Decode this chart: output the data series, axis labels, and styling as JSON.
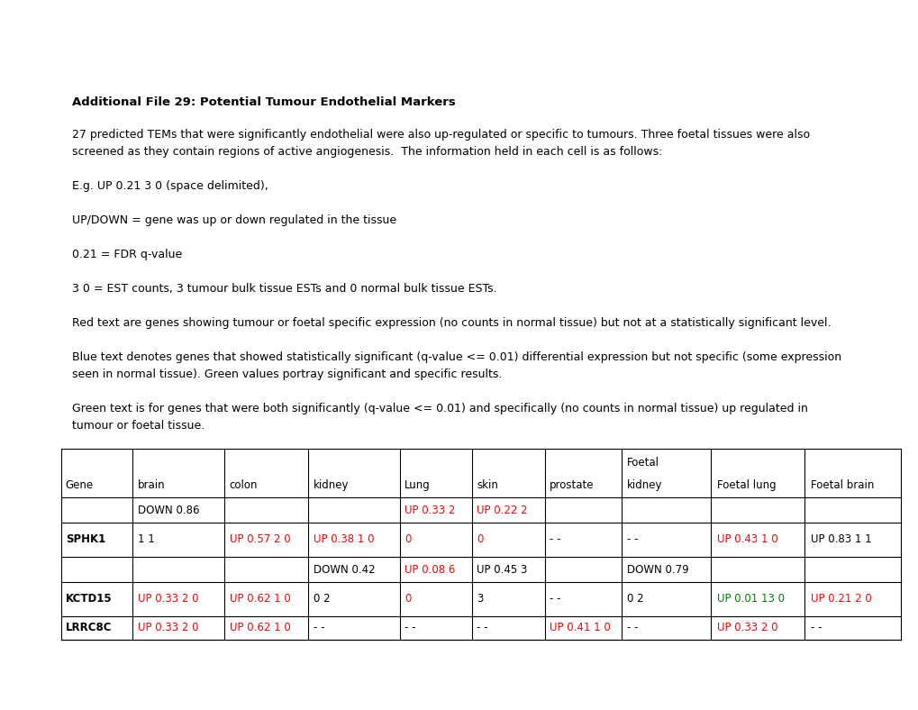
{
  "title": "Additional File 29: Potential Tumour Endothelial Markers",
  "body_paragraphs": [
    [
      "27 predicted TEMs that were significantly endothelial were also up-regulated or specific to tumours. Three foetal tissues were also",
      "screened as they contain regions of active angiogenesis.  The information held in each cell is as follows:"
    ],
    [
      "E.g. UP 0.21 3 0 (space delimited),"
    ],
    [
      "UP/DOWN = gene was up or down regulated in the tissue"
    ],
    [
      "0.21 = FDR q-value"
    ],
    [
      "3 0 = EST counts, 3 tumour bulk tissue ESTs and 0 normal bulk tissue ESTs."
    ],
    [
      "Red text are genes showing tumour or foetal specific expression (no counts in normal tissue) but not at a statistically significant level."
    ],
    [
      "Blue text denotes genes that showed statistically significant (q-value <= 0.01) differential expression but not specific (some expression",
      "seen in normal tissue). Green values portray significant and specific results."
    ],
    [
      "Green text is for genes that were both significantly (q-value <= 0.01) and specifically (no counts in normal tissue) up regulated in",
      "tumour or foetal tissue."
    ]
  ],
  "bg_color": "#ffffff",
  "title_fontsize": 9.5,
  "body_fontsize": 9.0,
  "table_fontsize": 8.5,
  "col_labels_row1": [
    "",
    "",
    "",
    "",
    "",
    "",
    "",
    "Foetal",
    "",
    ""
  ],
  "col_labels_row2": [
    "Gene",
    "brain",
    "colon",
    "kidney",
    "Lung",
    "skin",
    "prostate",
    "kidney",
    "Foetal lung",
    "Foetal brain"
  ],
  "table_rows": [
    {
      "type": "sub",
      "gene": "",
      "cells": [
        {
          "text": "DOWN 0.86",
          "color": "black"
        },
        {
          "text": "",
          "color": "black"
        },
        {
          "text": "",
          "color": "black"
        },
        {
          "text": "UP 0.33 2",
          "color": "red"
        },
        {
          "text": "UP 0.22 2",
          "color": "red"
        },
        {
          "text": "",
          "color": "black"
        },
        {
          "text": "",
          "color": "black"
        },
        {
          "text": "",
          "color": "black"
        },
        {
          "text": "",
          "color": "black"
        }
      ]
    },
    {
      "type": "main",
      "gene": "SPHK1",
      "gene_bold": true,
      "cells": [
        {
          "text": "1 1",
          "color": "black"
        },
        {
          "text": "UP 0.57 2 0",
          "color": "red"
        },
        {
          "text": "UP 0.38 1 0",
          "color": "red"
        },
        {
          "text": "0",
          "color": "red"
        },
        {
          "text": "0",
          "color": "red"
        },
        {
          "text": "- -",
          "color": "black"
        },
        {
          "text": "- -",
          "color": "black"
        },
        {
          "text": "UP 0.43 1 0",
          "color": "red"
        },
        {
          "text": "UP 0.83 1 1",
          "color": "black"
        }
      ]
    },
    {
      "type": "sub",
      "gene": "",
      "cells": [
        {
          "text": "",
          "color": "black"
        },
        {
          "text": "",
          "color": "black"
        },
        {
          "text": "DOWN 0.42",
          "color": "black"
        },
        {
          "text": "UP 0.08 6",
          "color": "red"
        },
        {
          "text": "UP 0.45 3",
          "color": "black"
        },
        {
          "text": "",
          "color": "black"
        },
        {
          "text": "DOWN 0.79",
          "color": "black"
        },
        {
          "text": "",
          "color": "black"
        },
        {
          "text": "",
          "color": "black"
        }
      ]
    },
    {
      "type": "main",
      "gene": "KCTD15",
      "gene_bold": true,
      "cells": [
        {
          "text": "UP 0.33 2 0",
          "color": "red"
        },
        {
          "text": "UP 0.62 1 0",
          "color": "red"
        },
        {
          "text": "0 2",
          "color": "black"
        },
        {
          "text": "0",
          "color": "red"
        },
        {
          "text": "3",
          "color": "black"
        },
        {
          "text": "- -",
          "color": "black"
        },
        {
          "text": "0 2",
          "color": "black"
        },
        {
          "text": "UP 0.01 13 0",
          "color": "green"
        },
        {
          "text": "UP 0.21 2 0",
          "color": "red"
        }
      ]
    },
    {
      "type": "single",
      "gene": "LRRC8C",
      "gene_bold": true,
      "cells": [
        {
          "text": "UP 0.33 2 0",
          "color": "red"
        },
        {
          "text": "UP 0.62 1 0",
          "color": "red"
        },
        {
          "text": "- -",
          "color": "black"
        },
        {
          "text": "- -",
          "color": "black"
        },
        {
          "text": "- -",
          "color": "black"
        },
        {
          "text": "UP 0.41 1 0",
          "color": "red"
        },
        {
          "text": "- -",
          "color": "black"
        },
        {
          "text": "UP 0.33 2 0",
          "color": "red"
        },
        {
          "text": "- -",
          "color": "black"
        }
      ]
    }
  ]
}
